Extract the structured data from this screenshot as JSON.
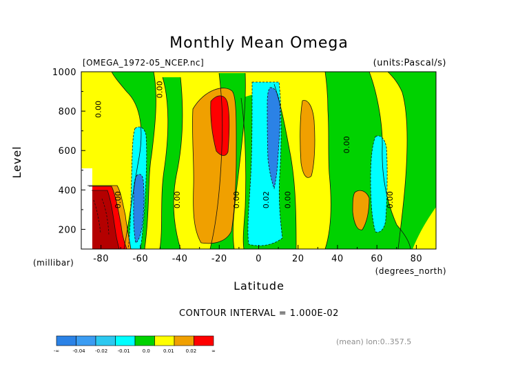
{
  "chart_data": {
    "type": "heatmap",
    "title": "Monthly Mean Omega",
    "file_label": "[OMEGA_1972-05_NCEP.nc]",
    "units_label": "(units:Pascal/s)",
    "xlabel": "Latitude",
    "x_unit_label": "(degrees_north)",
    "ylabel": "Level",
    "y_unit_label": "(millibar)",
    "x_ticks": [
      "-80",
      "-60",
      "-40",
      "-20",
      "0",
      "20",
      "40",
      "60",
      "80"
    ],
    "y_ticks": [
      "200",
      "400",
      "600",
      "800",
      "1000"
    ],
    "xlim": [
      -90,
      90
    ],
    "ylim": [
      1000,
      100
    ],
    "contour_interval_text": "CONTOUR INTERVAL = 1.000E-02",
    "mean_note": "(mean) lon:0..357.5",
    "contour_labels": [
      {
        "text": "0.00",
        "x": -70,
        "y": 350
      },
      {
        "text": "0.00",
        "x": -40,
        "y": 350
      },
      {
        "text": "0.00",
        "x": -10,
        "y": 350
      },
      {
        "text": "0.02",
        "x": 5,
        "y": 350
      },
      {
        "text": "0.00",
        "x": 16,
        "y": 350
      },
      {
        "text": "0.00",
        "x": 68,
        "y": 350
      },
      {
        "text": "0.00",
        "x": 46,
        "y": 630
      },
      {
        "text": "0.00",
        "x": -49,
        "y": 910
      },
      {
        "text": "0.00",
        "x": -80,
        "y": 810
      }
    ],
    "colorbar": {
      "labels": [
        "-∞",
        "-0.04",
        "-0.02",
        "-0.01",
        "0.0",
        "0.01",
        "0.02",
        "∞"
      ],
      "colors": [
        "#2b82e6",
        "#3b9cf2",
        "#2cc8f0",
        "#00ffff",
        "#00d200",
        "#ffff00",
        "#f0a000",
        "#ff0000"
      ]
    }
  }
}
